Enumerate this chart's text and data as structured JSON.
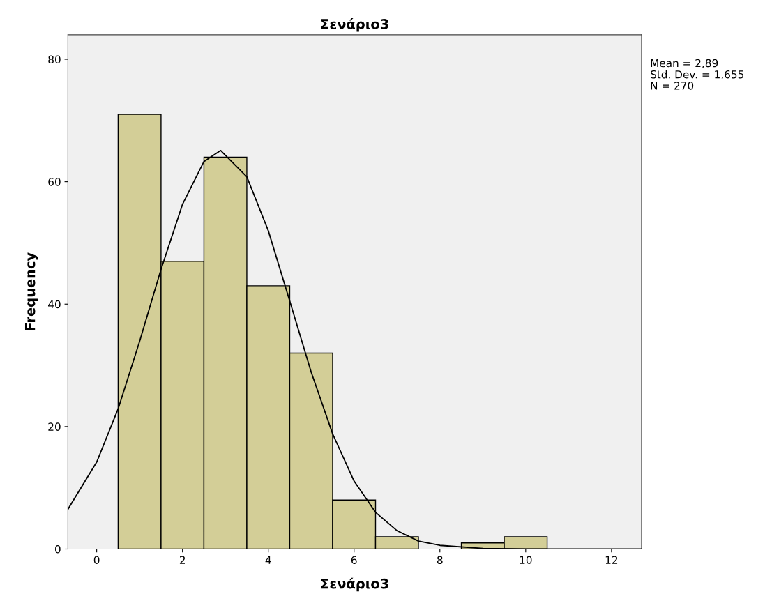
{
  "chart_data": {
    "type": "histogram",
    "title": "Σενάριο3",
    "xlabel": "Σενάριο3",
    "ylabel": "Frequency",
    "bins": [
      0.5,
      1.5,
      2.5,
      3.5,
      4.5,
      5.5,
      6.5,
      7.5,
      8.5,
      9.5,
      10.5
    ],
    "values": [
      71,
      47,
      64,
      43,
      32,
      8,
      2,
      0,
      1,
      2
    ],
    "color": "#d3ce97",
    "series": [
      {
        "type": "line",
        "color": "#000000",
        "x": [
          -0.67,
          0,
          0.5,
          1,
          1.5,
          2,
          2.5,
          2.89,
          3.5,
          4,
          4.5,
          5,
          5.5,
          6,
          6.5,
          7,
          7.5,
          8,
          9,
          10,
          12,
          12.7
        ],
        "values": [
          6.5,
          14.2,
          22.9,
          33.9,
          45.7,
          56.3,
          63.3,
          65.1,
          60.8,
          52.0,
          40.5,
          28.9,
          18.8,
          11.1,
          6.0,
          3.0,
          1.3,
          0.6,
          0.1,
          0,
          0,
          0
        ]
      }
    ],
    "xlim": [
      -0.67,
      12.7
    ],
    "ylim": [
      0,
      84
    ],
    "xticks": [
      0,
      2,
      4,
      6,
      8,
      10,
      12
    ],
    "yticks": [
      0,
      20,
      40,
      60,
      80
    ],
    "grid": false,
    "annotations": [
      "Mean = 2,89",
      "Std. Dev. = 1,655",
      "N = 270"
    ]
  }
}
